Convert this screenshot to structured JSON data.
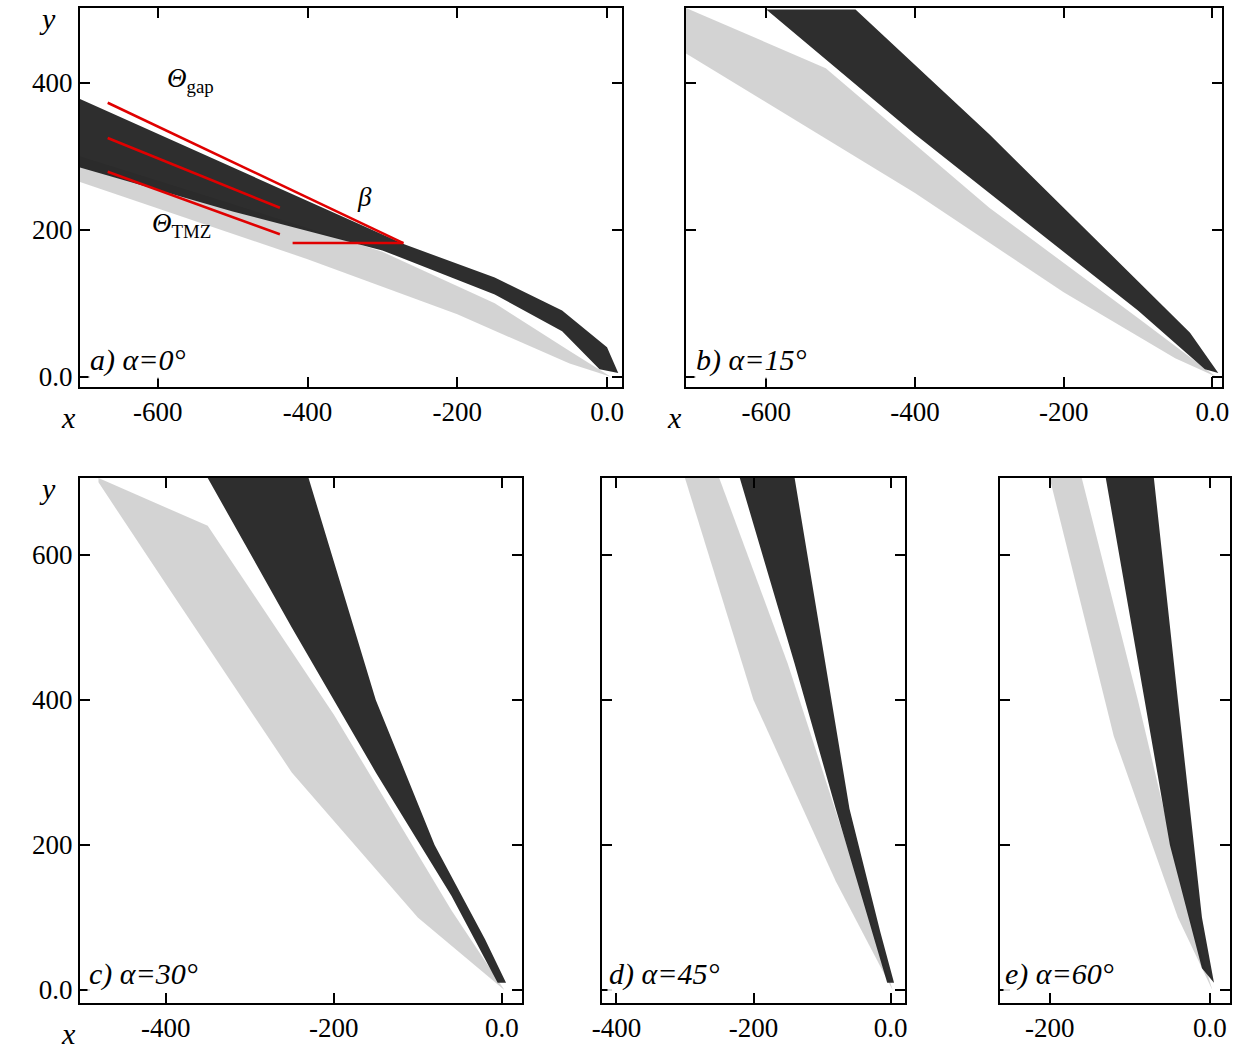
{
  "chart_data": [
    {
      "type": "area",
      "title": "a) α=0°",
      "xlabel": "x",
      "ylabel": "y",
      "xlim": [
        -704,
        20
      ],
      "ylim": [
        -14,
        502
      ],
      "xticks": [
        -600,
        -400,
        -200,
        {
          "value": 0,
          "label": "0.0"
        }
      ],
      "yticks": [
        {
          "value": 0,
          "label": "0.0"
        },
        200,
        400
      ],
      "series": [
        {
          "color": "#c4c4c4",
          "x": [
            -704,
            -500,
            -300,
            -150,
            -50,
            5,
            -50,
            -200,
            -400,
            -704
          ],
          "values": [
            300,
            235,
            170,
            100,
            35,
            0,
            18,
            85,
            160,
            265
          ]
        },
        {
          "color": "#1c1c1c",
          "x": [
            15,
            0,
            -60,
            -150,
            -270,
            -704,
            -704,
            -500,
            -300,
            -150,
            -60,
            -10
          ],
          "values": [
            5,
            40,
            90,
            135,
            180,
            378,
            285,
            225,
            172,
            112,
            62,
            10
          ]
        }
      ],
      "lines": [
        {
          "color": "#e00000",
          "x": [
            -667,
            -272
          ],
          "values": [
            373,
            182
          ]
        },
        {
          "color": "#e00000",
          "x": [
            -667,
            -437
          ],
          "values": [
            325,
            230
          ]
        },
        {
          "color": "#e00000",
          "x": [
            -667,
            -437
          ],
          "values": [
            279,
            194
          ]
        },
        {
          "color": "#e00000",
          "x": [
            -420,
            -272
          ],
          "values": [
            182,
            182
          ]
        }
      ],
      "annotations": [
        {
          "text": "Θ",
          "sub": "gap",
          "x": -590,
          "y": 404
        },
        {
          "text": "Θ",
          "sub": "TMZ",
          "x": -610,
          "y": 207
        },
        {
          "text": "β",
          "x": -336,
          "y": 244
        }
      ]
    },
    {
      "type": "area",
      "title": "b) α=15°",
      "xlabel": "x",
      "xlim": [
        -708,
        13
      ],
      "ylim": [
        -14,
        502
      ],
      "tick_labels": "x",
      "xticks": [
        -600,
        -400,
        -200,
        {
          "value": 0,
          "label": "0.0"
        }
      ],
      "yticks": [
        0,
        200,
        400
      ],
      "series": [
        {
          "color": "#c4c4c4",
          "x": [
            -708,
            -400,
            -200,
            -50,
            5,
            -100,
            -300,
            -520,
            -708
          ],
          "values": [
            440,
            250,
            115,
            25,
            0,
            80,
            230,
            420,
            502
          ]
        },
        {
          "color": "#1c1c1c",
          "x": [
            8,
            -30,
            -100,
            -200,
            -300,
            -480,
            -600,
            -400,
            -250,
            -100,
            -10
          ],
          "values": [
            5,
            60,
            130,
            230,
            330,
            500,
            500,
            330,
            210,
            90,
            10
          ]
        }
      ]
    },
    {
      "type": "area",
      "title": "c) α=30°",
      "xlabel": "x",
      "ylabel": "y",
      "xlim": [
        -502,
        24
      ],
      "ylim": [
        -18,
        706
      ],
      "xticks": [
        -400,
        -200,
        {
          "value": 0,
          "label": "0.0"
        }
      ],
      "yticks": [
        {
          "value": 0,
          "label": "0.0"
        },
        200,
        400,
        600
      ],
      "series": [
        {
          "color": "#c4c4c4",
          "x": [
            -480,
            -400,
            -250,
            -100,
            3,
            -60,
            -200,
            -350,
            -480
          ],
          "values": [
            700,
            560,
            300,
            100,
            0,
            110,
            380,
            640,
            706
          ]
        },
        {
          "color": "#1c1c1c",
          "x": [
            5,
            -20,
            -80,
            -150,
            -230,
            -350,
            -250,
            -150,
            -60,
            -5
          ],
          "values": [
            10,
            70,
            200,
            400,
            706,
            706,
            500,
            300,
            130,
            10
          ]
        }
      ]
    },
    {
      "type": "area",
      "title": "d) α=45°",
      "xlim": [
        -421,
        21
      ],
      "ylim": [
        -18,
        706
      ],
      "tick_labels": "x",
      "xticks": [
        -400,
        -200,
        {
          "value": 0,
          "label": "0.0"
        }
      ],
      "yticks": [
        0,
        200,
        400,
        600
      ],
      "series": [
        {
          "color": "#c4c4c4",
          "x": [
            -300,
            -200,
            -80,
            3,
            -40,
            -150,
            -250,
            -300
          ],
          "values": [
            706,
            400,
            150,
            0,
            130,
            450,
            706,
            706
          ]
        },
        {
          "color": "#1c1c1c",
          "x": [
            5,
            -15,
            -60,
            -140,
            -220,
            -140,
            -80,
            -20,
            -5
          ],
          "values": [
            10,
            80,
            250,
            706,
            706,
            450,
            250,
            60,
            10
          ]
        }
      ]
    },
    {
      "type": "area",
      "title": "e) α=60°",
      "xlim": [
        -262,
        25
      ],
      "ylim": [
        -18,
        706
      ],
      "tick_labels": "x",
      "xticks": [
        -200,
        {
          "value": 0,
          "label": "0.0"
        }
      ],
      "yticks": [
        0,
        200,
        400,
        600
      ],
      "series": [
        {
          "color": "#c4c4c4",
          "x": [
            -200,
            -120,
            -40,
            3,
            -30,
            -90,
            -160,
            -200
          ],
          "values": [
            706,
            350,
            100,
            0,
            120,
            400,
            706,
            706
          ]
        },
        {
          "color": "#1c1c1c",
          "x": [
            5,
            -10,
            -40,
            -70,
            -130,
            -90,
            -50,
            -10
          ],
          "values": [
            10,
            100,
            400,
            706,
            706,
            450,
            200,
            30
          ]
        }
      ]
    }
  ]
}
